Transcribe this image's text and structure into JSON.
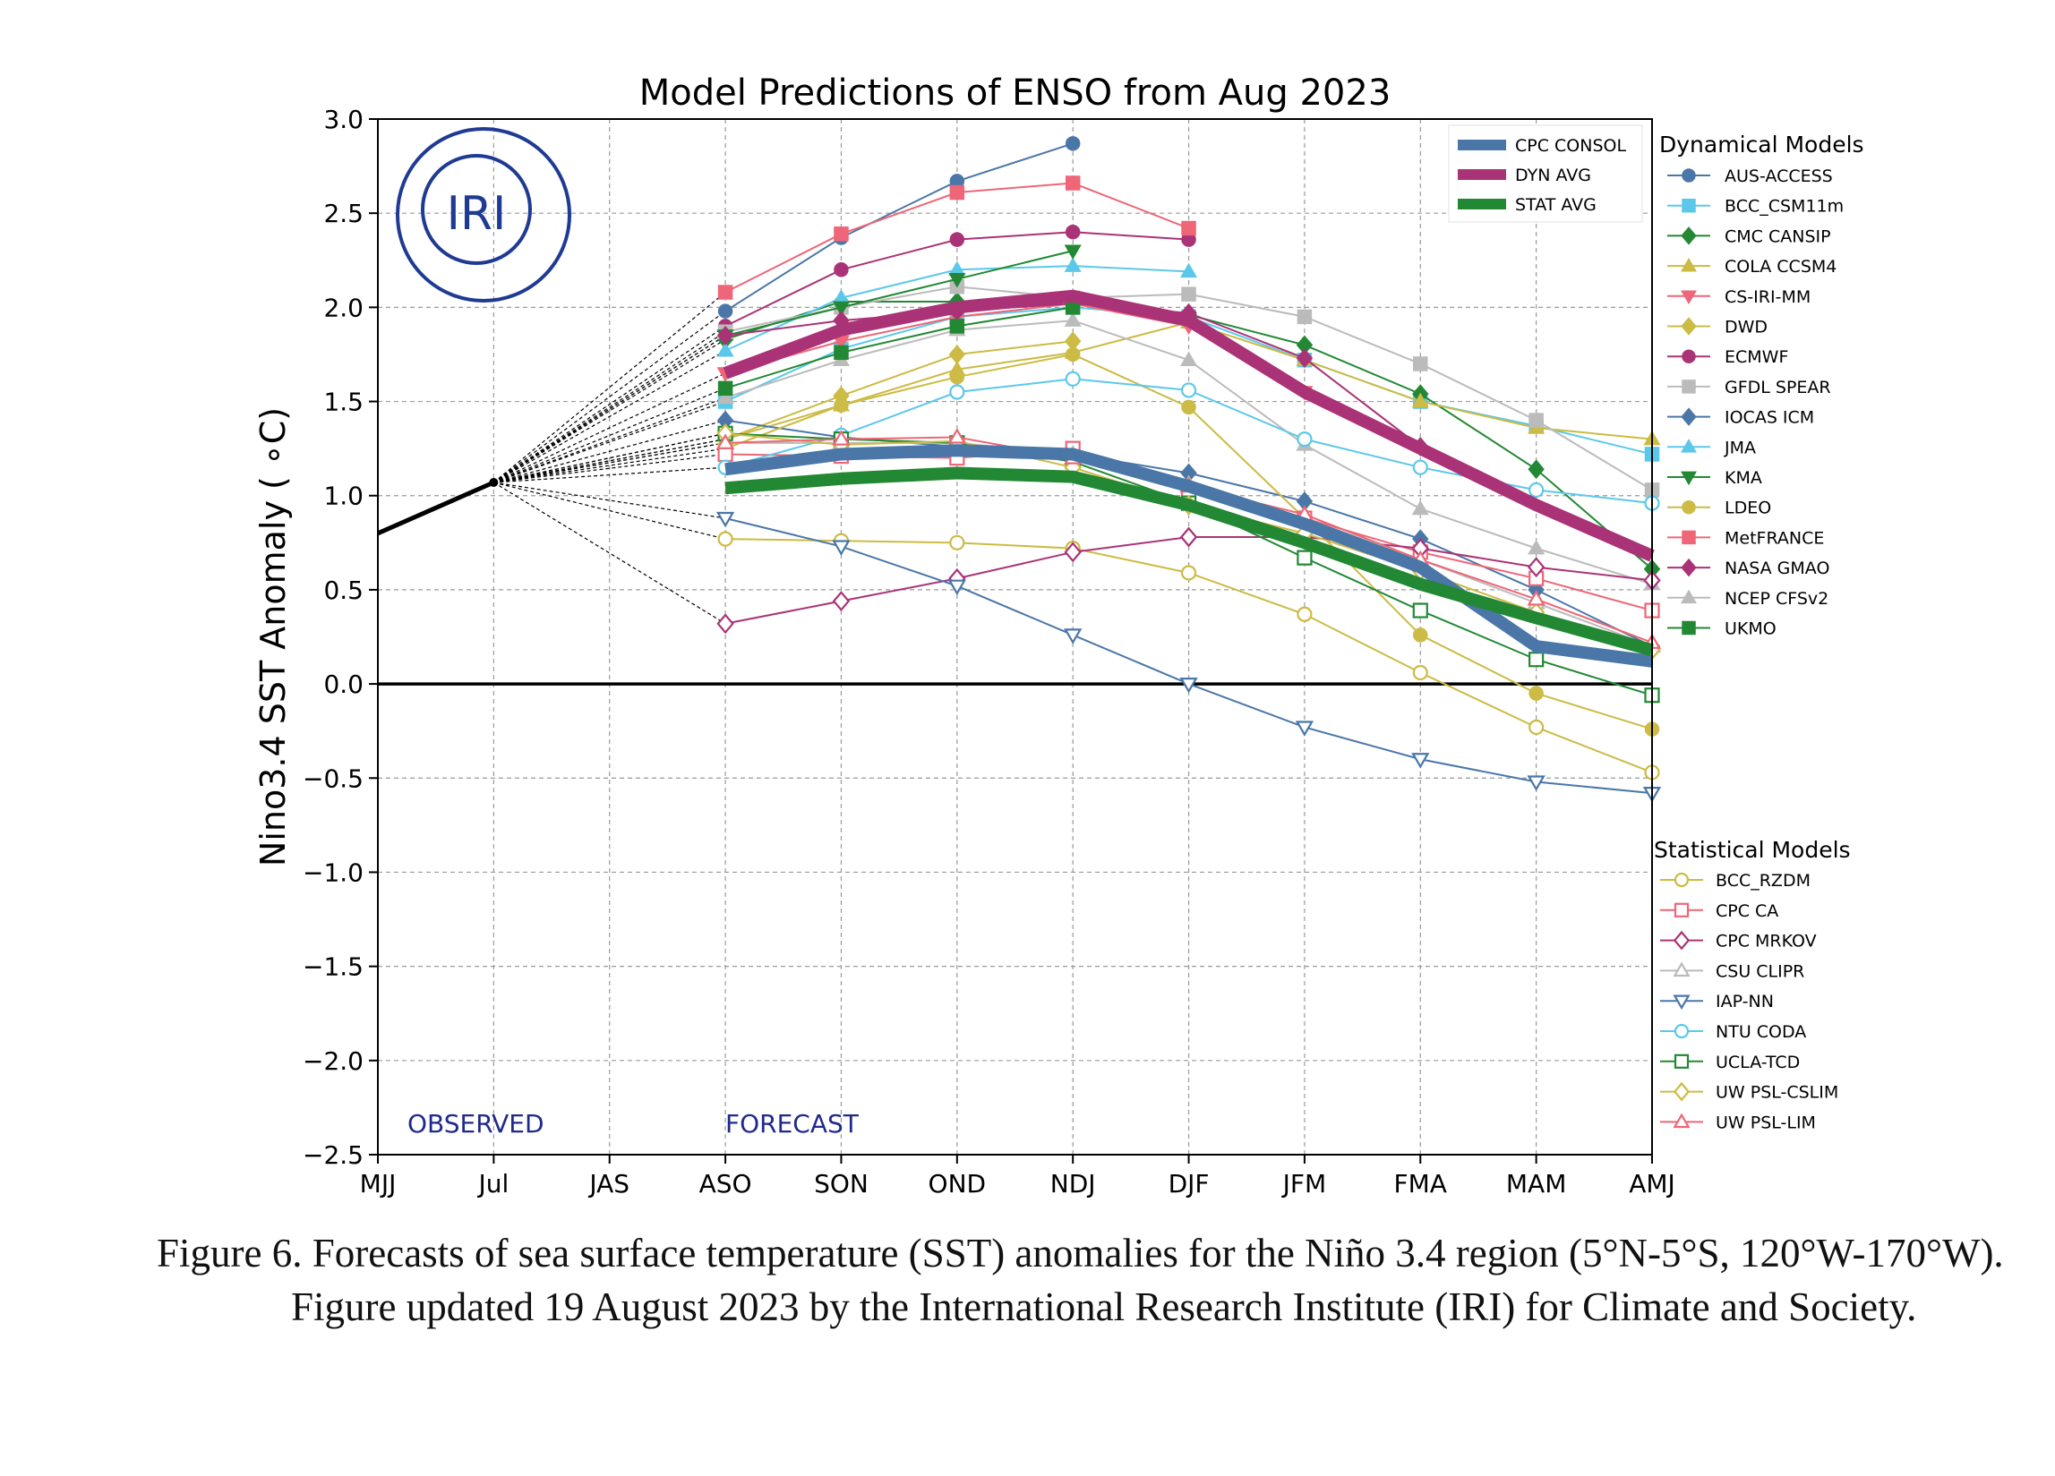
{
  "chart_data": {
    "type": "line",
    "title": "Model Predictions of ENSO from Aug 2023",
    "xlabel": "",
    "ylabel": "Nino3.4 SST Anomaly ( ∘C)",
    "categories": [
      "MJJ",
      "Jul",
      "JAS",
      "ASO",
      "SON",
      "OND",
      "NDJ",
      "DJF",
      "JFM",
      "FMA",
      "MAM",
      "AMJ"
    ],
    "yticks": [
      "3.0",
      "2.5",
      "2.0",
      "1.5",
      "1.0",
      "0.5",
      "0.0",
      "−0.5",
      "−1.0",
      "−1.5",
      "−2.0",
      "−2.5"
    ],
    "ylim": [
      -2.5,
      3.0
    ],
    "grid": true,
    "observed_label": "OBSERVED",
    "forecast_label": "FORECAST",
    "logo_text": "IRI",
    "observed": {
      "x": [
        "MJJ",
        "Jul"
      ],
      "values": [
        0.8,
        1.07
      ]
    },
    "legend_avg": [
      {
        "name": "CPC CONSOL",
        "color": "#4a77a8"
      },
      {
        "name": "DYN AVG",
        "color": "#aa3377"
      },
      {
        "name": "STAT AVG",
        "color": "#228833"
      }
    ],
    "dynamical_title": "Dynamical Models",
    "statistical_title": "Statistical Models",
    "averages": [
      {
        "name": "CPC CONSOL",
        "color": "#4a77a8",
        "width": 14,
        "values": [
          1.14,
          1.22,
          1.24,
          1.22,
          1.05,
          0.85,
          0.62,
          0.2,
          0.12
        ]
      },
      {
        "name": "DYN AVG",
        "color": "#aa3377",
        "width": 14,
        "values": [
          1.65,
          1.88,
          2.0,
          2.06,
          1.93,
          1.55,
          1.25,
          0.95,
          0.68
        ]
      },
      {
        "name": "STAT AVG",
        "color": "#228833",
        "width": 14,
        "values": [
          1.04,
          1.09,
          1.12,
          1.1,
          0.95,
          0.75,
          0.53,
          0.35,
          0.18
        ]
      }
    ],
    "dynamical": [
      {
        "name": "AUS-ACCESS",
        "color": "#4a77a8",
        "marker": "circle",
        "filled": true,
        "values": [
          1.98,
          2.37,
          2.67,
          2.87
        ]
      },
      {
        "name": "BCC_CSM11m",
        "color": "#5bc8ea",
        "marker": "square",
        "filled": true,
        "values": [
          1.5,
          1.78,
          1.95,
          2.0,
          1.95,
          1.72,
          1.5,
          1.37,
          1.22
        ]
      },
      {
        "name": "CMC CANSIP",
        "color": "#228833",
        "marker": "diamond",
        "filled": true,
        "values": [
          1.83,
          2.03,
          2.03,
          2.03,
          1.96,
          1.8,
          1.54,
          1.14,
          0.61
        ]
      },
      {
        "name": "COLA CCSM4",
        "color": "#ccbb44",
        "marker": "triangle-up",
        "filled": true,
        "values": [
          1.3,
          1.48,
          1.67,
          1.76,
          1.92,
          1.72,
          1.5,
          1.36,
          1.3
        ]
      },
      {
        "name": "CS-IRI-MM",
        "color": "#ee6677",
        "marker": "triangle-down",
        "filled": true,
        "values": [
          1.65,
          1.82,
          1.95,
          2.02,
          1.9,
          1.55
        ]
      },
      {
        "name": "DWD",
        "color": "#ccbb44",
        "marker": "diamond",
        "filled": true,
        "values": [
          1.3,
          1.53,
          1.75,
          1.82
        ]
      },
      {
        "name": "ECMWF",
        "color": "#aa3377",
        "marker": "circle",
        "filled": true,
        "values": [
          1.9,
          2.2,
          2.36,
          2.4,
          2.36
        ]
      },
      {
        "name": "GFDL SPEAR",
        "color": "#bbbbbb",
        "marker": "square",
        "filled": true,
        "values": [
          1.87,
          2.0,
          2.11,
          2.05,
          2.07,
          1.95,
          1.7,
          1.4,
          1.03
        ]
      },
      {
        "name": "IOCAS ICM",
        "color": "#4a77a8",
        "marker": "diamond",
        "filled": true,
        "values": [
          1.4,
          1.31,
          1.26,
          1.22,
          1.12,
          0.97,
          0.77,
          0.5,
          0.2
        ]
      },
      {
        "name": "JMA",
        "color": "#5bc8ea",
        "marker": "triangle-up",
        "filled": true,
        "values": [
          1.77,
          2.05,
          2.2,
          2.22,
          2.19
        ]
      },
      {
        "name": "KMA",
        "color": "#228833",
        "marker": "triangle-down",
        "filled": true,
        "values": [
          1.85,
          2.0,
          2.15,
          2.3
        ]
      },
      {
        "name": "LDEO",
        "color": "#ccbb44",
        "marker": "circle",
        "filled": true,
        "values": [
          1.25,
          1.48,
          1.63,
          1.75,
          1.47,
          0.88,
          0.26,
          -0.05,
          -0.24
        ]
      },
      {
        "name": "MetFRANCE",
        "color": "#ee6677",
        "marker": "square",
        "filled": true,
        "values": [
          2.08,
          2.39,
          2.61,
          2.66,
          2.42
        ]
      },
      {
        "name": "NASA GMAO",
        "color": "#aa3377",
        "marker": "diamond",
        "filled": true,
        "values": [
          1.85,
          1.93,
          1.98,
          2.02,
          1.97,
          1.73,
          1.26
        ]
      },
      {
        "name": "NCEP CFSv2",
        "color": "#bbbbbb",
        "marker": "triangle-up",
        "filled": true,
        "values": [
          1.52,
          1.72,
          1.88,
          1.93,
          1.72,
          1.27,
          0.93,
          0.72,
          0.53
        ]
      },
      {
        "name": "UKMO",
        "color": "#228833",
        "marker": "square",
        "filled": true,
        "values": [
          1.57,
          1.76,
          1.9,
          2.0
        ]
      }
    ],
    "statistical": [
      {
        "name": "BCC_RZDM",
        "color": "#ccbb44",
        "marker": "circle",
        "filled": false,
        "values": [
          0.77,
          0.76,
          0.75,
          0.72,
          0.59,
          0.37,
          0.06,
          -0.23,
          -0.47
        ]
      },
      {
        "name": "CPC CA",
        "color": "#ee6677",
        "marker": "square",
        "filled": false,
        "values": [
          1.22,
          1.21,
          1.2,
          1.25,
          1.02,
          0.88,
          0.7,
          0.56,
          0.39
        ]
      },
      {
        "name": "CPC MRKOV",
        "color": "#aa3377",
        "marker": "diamond",
        "filled": false,
        "values": [
          0.32,
          0.44,
          0.56,
          0.7,
          0.78,
          0.78,
          0.72,
          0.62,
          0.55
        ]
      },
      {
        "name": "CSU CLIPR",
        "color": "#bbbbbb",
        "marker": "triangle-up",
        "filled": false,
        "values": [
          1.28,
          1.28,
          1.28,
          1.22,
          1.06,
          0.88,
          0.66,
          0.43,
          0.2
        ]
      },
      {
        "name": "IAP-NN",
        "color": "#4a77a8",
        "marker": "triangle-down",
        "filled": false,
        "values": [
          0.88,
          0.73,
          0.52,
          0.26,
          0.0,
          -0.23,
          -0.4,
          -0.52,
          -0.58
        ]
      },
      {
        "name": "NTU CODA",
        "color": "#5bc8ea",
        "marker": "circle",
        "filled": false,
        "values": [
          1.15,
          1.32,
          1.55,
          1.62,
          1.56,
          1.3,
          1.15,
          1.03,
          0.96
        ]
      },
      {
        "name": "UCLA-TCD",
        "color": "#228833",
        "marker": "square",
        "filled": false,
        "values": [
          1.33,
          1.3,
          1.28,
          1.18,
          0.96,
          0.67,
          0.39,
          0.13,
          -0.06
        ]
      },
      {
        "name": "UW PSL-CSLIM",
        "color": "#ccbb44",
        "marker": "diamond",
        "filled": false,
        "values": [
          1.33,
          1.27,
          1.29,
          1.15,
          0.95,
          0.8,
          0.6,
          0.38,
          0.18
        ]
      },
      {
        "name": "UW PSL-LIM",
        "color": "#ee6677",
        "marker": "triangle-up",
        "filled": false,
        "values": [
          1.28,
          1.3,
          1.31,
          1.2,
          1.05,
          0.9,
          0.66,
          0.45,
          0.22
        ]
      }
    ]
  },
  "caption": {
    "text": "Figure 6. Forecasts of sea surface temperature (SST) anomalies for the Niño 3.4 region (5°N-5°S, 120°W-170°W). Figure updated 19 August 2023 by the International Research Institute (IRI) for Climate and Society."
  }
}
